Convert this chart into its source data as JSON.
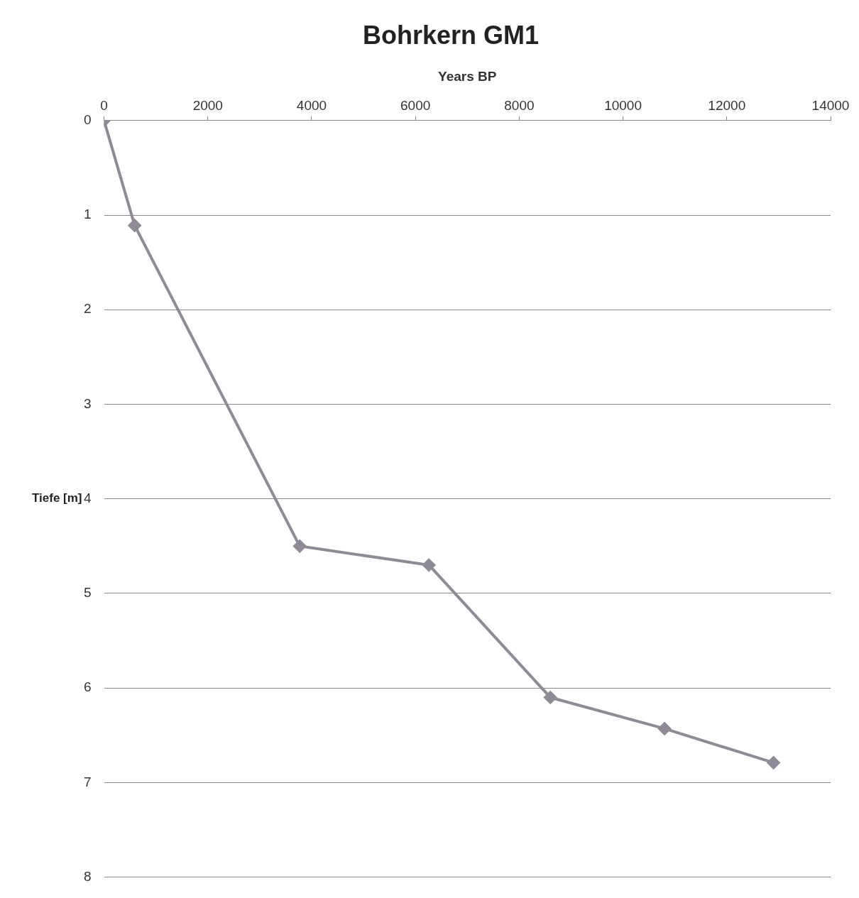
{
  "chart_data": {
    "type": "line",
    "title": "Bohrkern GM1",
    "xlabel": "Years BP",
    "ylabel": "Tiefe [m]",
    "x": [
      0,
      590,
      3770,
      6260,
      8600,
      10800,
      12900
    ],
    "values": [
      0,
      1.11,
      4.5,
      4.7,
      6.1,
      6.43,
      6.79
    ],
    "color": "#8e8a96",
    "marker": "diamond",
    "line_style": "solid",
    "xlim": [
      0,
      14000
    ],
    "xticks": [
      0,
      2000,
      4000,
      6000,
      8000,
      10000,
      12000,
      14000
    ],
    "ylim": [
      8,
      0
    ],
    "yticks": [
      0,
      1,
      2,
      3,
      4,
      5,
      6,
      7,
      8
    ],
    "grid": "y",
    "legend": false
  }
}
